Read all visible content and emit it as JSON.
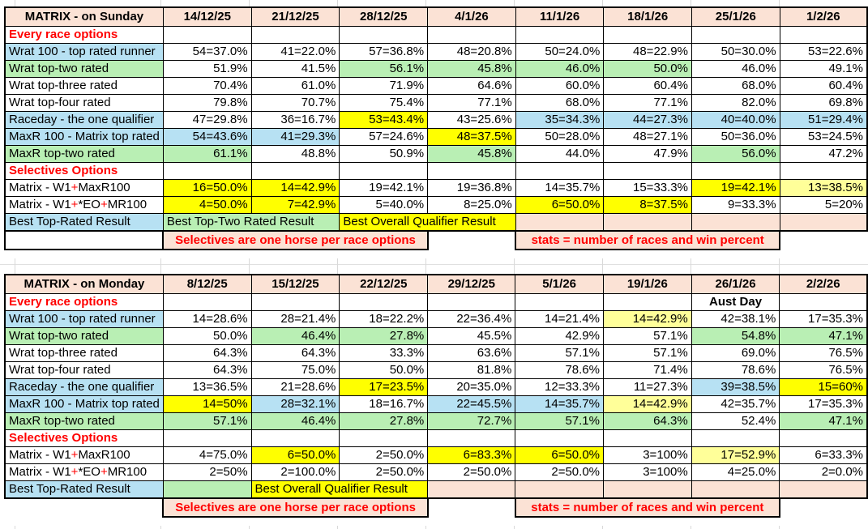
{
  "colors": {
    "peach": "#fbe2d5",
    "blue": "#b7e1f3",
    "green": "#b9efb4",
    "yellow": "#ffff00",
    "paley": "#ffff99",
    "red_text": "#ff0000",
    "grid_faint": "#d9d9d9"
  },
  "glyphs": {
    "plus": "+"
  },
  "tables": [
    {
      "title": "MATRIX - on Sunday",
      "dates": [
        "14/12/25",
        "21/12/25",
        "28/12/25",
        "4/1/26",
        "11/1/26",
        "18/1/26",
        "25/1/26",
        "1/2/26"
      ],
      "rows": [
        {
          "label": "Every race options",
          "section": true,
          "cells": [
            {
              "t": ""
            },
            {
              "t": ""
            },
            {
              "t": ""
            },
            {
              "t": ""
            },
            {
              "t": ""
            },
            {
              "t": ""
            },
            {
              "t": ""
            },
            {
              "t": ""
            }
          ]
        },
        {
          "label": "Wrat 100 - top rated runner",
          "lbg": "blue",
          "cells": [
            {
              "t": "54=37.0%"
            },
            {
              "t": "41=22.0%"
            },
            {
              "t": "57=36.8%"
            },
            {
              "t": "48=20.8%"
            },
            {
              "t": "50=24.0%"
            },
            {
              "t": "48=22.9%"
            },
            {
              "t": "50=30.0%"
            },
            {
              "t": "53=22.6%"
            }
          ]
        },
        {
          "label": "Wrat top-two rated",
          "lbg": "green",
          "cells": [
            {
              "t": "51.9%"
            },
            {
              "t": "41.5%"
            },
            {
              "t": "56.1%",
              "bg": "green"
            },
            {
              "t": "45.8%",
              "bg": "green"
            },
            {
              "t": "46.0%",
              "bg": "green"
            },
            {
              "t": "50.0%",
              "bg": "green"
            },
            {
              "t": "46.0%"
            },
            {
              "t": "49.1%"
            }
          ]
        },
        {
          "label": "Wrat top-three rated",
          "cells": [
            {
              "t": "70.4%"
            },
            {
              "t": "61.0%"
            },
            {
              "t": "71.9%"
            },
            {
              "t": "64.6%"
            },
            {
              "t": "60.0%"
            },
            {
              "t": "60.4%"
            },
            {
              "t": "68.0%"
            },
            {
              "t": "60.4%"
            }
          ]
        },
        {
          "label": "Wrat top-four rated",
          "cells": [
            {
              "t": "79.8%"
            },
            {
              "t": "70.7%"
            },
            {
              "t": "75.4%"
            },
            {
              "t": "77.1%"
            },
            {
              "t": "68.0%"
            },
            {
              "t": "77.1%"
            },
            {
              "t": "82.0%"
            },
            {
              "t": "69.8%"
            }
          ]
        },
        {
          "label": "Raceday - the one qualifier",
          "lbg": "blue",
          "cells": [
            {
              "t": "47=29.8%"
            },
            {
              "t": "36=16.7%"
            },
            {
              "t": "53=43.4%",
              "bg": "yellow"
            },
            {
              "t": "43=25.6%"
            },
            {
              "t": "35=34.3%",
              "bg": "blue"
            },
            {
              "t": "44=27.3%",
              "bg": "blue"
            },
            {
              "t": "40=40.0%",
              "bg": "blue"
            },
            {
              "t": "51=29.4%",
              "bg": "blue"
            }
          ]
        },
        {
          "label": "MaxR 100 - Matrix top rated",
          "lbg": "blue",
          "cells": [
            {
              "t": "54=43.6%",
              "bg": "blue"
            },
            {
              "t": "41=29.3%",
              "bg": "blue"
            },
            {
              "t": "57=24.6%"
            },
            {
              "t": "48=37.5%",
              "bg": "yellow"
            },
            {
              "t": "50=28.0%"
            },
            {
              "t": "48=27.1%"
            },
            {
              "t": "50=36.0%"
            },
            {
              "t": "53=24.5%"
            }
          ]
        },
        {
          "label": "MaxR top-two rated",
          "lbg": "green",
          "cells": [
            {
              "t": "61.1%",
              "bg": "green"
            },
            {
              "t": "48.8%"
            },
            {
              "t": "50.9%"
            },
            {
              "t": "45.8%",
              "bg": "green"
            },
            {
              "t": "44.0%"
            },
            {
              "t": "47.9%"
            },
            {
              "t": "56.0%",
              "bg": "green"
            },
            {
              "t": "47.2%"
            }
          ]
        },
        {
          "label": "Selectives Options",
          "section": true,
          "cells": [
            {
              "t": ""
            },
            {
              "t": ""
            },
            {
              "t": ""
            },
            {
              "t": ""
            },
            {
              "t": ""
            },
            {
              "t": ""
            },
            {
              "t": ""
            },
            {
              "t": ""
            }
          ]
        },
        {
          "parts": [
            "Matrix - W1",
            "MaxR100"
          ],
          "cells": [
            {
              "t": "16=50.0%",
              "bg": "yellow"
            },
            {
              "t": "14=42.9%",
              "bg": "yellow"
            },
            {
              "t": "19=42.1%"
            },
            {
              "t": "19=36.8%"
            },
            {
              "t": "14=35.7%"
            },
            {
              "t": "15=33.3%"
            },
            {
              "t": "19=42.1%",
              "bg": "yellow"
            },
            {
              "t": "13=38.5%",
              "bg": "paley"
            }
          ]
        },
        {
          "parts": [
            "Matrix - W1",
            "*EO",
            "MR100"
          ],
          "cells": [
            {
              "t": "4=50.0%",
              "bg": "yellow"
            },
            {
              "t": "7=42.9%",
              "bg": "yellow"
            },
            {
              "t": "5=40.0%"
            },
            {
              "t": "8=25.0%"
            },
            {
              "t": "6=50.0%",
              "bg": "yellow"
            },
            {
              "t": "8=37.5%",
              "bg": "yellow"
            },
            {
              "t": "9=33.3%"
            },
            {
              "t": "5=20%"
            }
          ]
        }
      ],
      "bottom": {
        "label": {
          "t": "Best Top-Rated Result",
          "bg": "blue"
        },
        "spans": [
          {
            "t": "Best Top-Two Rated Result",
            "bg": "green",
            "cs": 2
          },
          {
            "t": "Best Overall Qualifier Result",
            "bg": "yellow",
            "cs": 2
          },
          {
            "t": "",
            "bg": "peach",
            "cs": 1
          },
          {
            "t": "",
            "bg": "peach",
            "cs": 1
          },
          {
            "t": "",
            "bg": "peach",
            "cs": 1
          },
          {
            "t": "",
            "bg": "peach",
            "cs": 1
          }
        ]
      },
      "footer": {
        "label_boxed": true,
        "selectives_note": "Selectives are one horse per race options",
        "stats_note": "stats = number of races and win percent"
      }
    },
    {
      "title": "MATRIX - on Monday",
      "dates": [
        "8/12/25",
        "15/12/25",
        "22/12/25",
        "29/12/25",
        "5/1/26",
        "19/1/26",
        "26/1/26",
        "2/2/26"
      ],
      "rows": [
        {
          "label": "Every race options",
          "section": true,
          "cells": [
            {
              "t": ""
            },
            {
              "t": ""
            },
            {
              "t": ""
            },
            {
              "t": ""
            },
            {
              "t": ""
            },
            {
              "t": ""
            },
            {
              "t": "Aust Day",
              "b": true,
              "al": "ctr"
            },
            {
              "t": ""
            }
          ]
        },
        {
          "label": "Wrat 100 - top rated runner",
          "lbg": "blue",
          "cells": [
            {
              "t": "14=28.6%"
            },
            {
              "t": "28=21.4%"
            },
            {
              "t": "18=22.2%"
            },
            {
              "t": "22=36.4%"
            },
            {
              "t": "14=21.4%"
            },
            {
              "t": "14=42.9%",
              "bg": "paley"
            },
            {
              "t": "42=38.1%"
            },
            {
              "t": "17=35.3%"
            }
          ]
        },
        {
          "label": "Wrat top-two rated",
          "lbg": "green",
          "cells": [
            {
              "t": "50.0%"
            },
            {
              "t": "46.4%",
              "bg": "green"
            },
            {
              "t": "27.8%",
              "bg": "green"
            },
            {
              "t": "45.5%"
            },
            {
              "t": "42.9%"
            },
            {
              "t": "57.1%"
            },
            {
              "t": "54.8%",
              "bg": "green"
            },
            {
              "t": "47.1%",
              "bg": "green"
            }
          ]
        },
        {
          "label": "Wrat top-three rated",
          "cells": [
            {
              "t": "64.3%"
            },
            {
              "t": "64.3%"
            },
            {
              "t": "33.3%"
            },
            {
              "t": "63.6%"
            },
            {
              "t": "57.1%"
            },
            {
              "t": "57.1%"
            },
            {
              "t": "69.0%"
            },
            {
              "t": "76.5%"
            }
          ]
        },
        {
          "label": "Wrat top-four rated",
          "cells": [
            {
              "t": "64.3%"
            },
            {
              "t": "75.0%"
            },
            {
              "t": "50.0%"
            },
            {
              "t": "81.8%"
            },
            {
              "t": "78.6%"
            },
            {
              "t": "71.4%"
            },
            {
              "t": "78.6%"
            },
            {
              "t": "76.5%"
            }
          ]
        },
        {
          "label": "Raceday - the one qualifier",
          "lbg": "blue",
          "cells": [
            {
              "t": "13=36.5%"
            },
            {
              "t": "21=28.6%"
            },
            {
              "t": "17=23.5%",
              "bg": "yellow"
            },
            {
              "t": "20=35.0%"
            },
            {
              "t": "12=33.3%"
            },
            {
              "t": "11=27.3%"
            },
            {
              "t": "39=38.5%",
              "bg": "blue"
            },
            {
              "t": "15=60%",
              "bg": "yellow"
            }
          ]
        },
        {
          "label": "MaxR 100 - Matrix top rated",
          "lbg": "blue",
          "cells": [
            {
              "t": "14=50%",
              "bg": "yellow"
            },
            {
              "t": "28=32.1%",
              "bg": "blue"
            },
            {
              "t": "18=16.7%"
            },
            {
              "t": "22=45.5%",
              "bg": "blue"
            },
            {
              "t": "14=35.7%",
              "bg": "blue"
            },
            {
              "t": "14=42.9%",
              "bg": "paley"
            },
            {
              "t": "42=35.7%"
            },
            {
              "t": "17=35.3%"
            }
          ]
        },
        {
          "label": "MaxR top-two rated",
          "lbg": "green",
          "cells": [
            {
              "t": "57.1%",
              "bg": "green"
            },
            {
              "t": "46.4%",
              "bg": "green"
            },
            {
              "t": "27.8%",
              "bg": "green"
            },
            {
              "t": "72.7%",
              "bg": "green"
            },
            {
              "t": "57.1%",
              "bg": "green"
            },
            {
              "t": "64.3%",
              "bg": "green"
            },
            {
              "t": "52.4%"
            },
            {
              "t": "47.1%",
              "bg": "green"
            }
          ]
        },
        {
          "label": "Selectives Options",
          "section": true,
          "cells": [
            {
              "t": ""
            },
            {
              "t": ""
            },
            {
              "t": ""
            },
            {
              "t": ""
            },
            {
              "t": ""
            },
            {
              "t": ""
            },
            {
              "t": ""
            },
            {
              "t": ""
            }
          ]
        },
        {
          "parts": [
            "Matrix - W1",
            "MaxR100"
          ],
          "cells": [
            {
              "t": "4=75.0%"
            },
            {
              "t": "6=50.0%",
              "bg": "yellow"
            },
            {
              "t": "2=50.0%"
            },
            {
              "t": "6=83.3%",
              "bg": "yellow"
            },
            {
              "t": "6=50.0%",
              "bg": "yellow"
            },
            {
              "t": "3=100%"
            },
            {
              "t": "17=52.9%",
              "bg": "paley"
            },
            {
              "t": "6=33.3%"
            }
          ]
        },
        {
          "parts": [
            "Matrix - W1",
            "*EO",
            "MR100"
          ],
          "cells": [
            {
              "t": "2=50%"
            },
            {
              "t": "2=100.0%"
            },
            {
              "t": "2=50.0%"
            },
            {
              "t": "2=50.0%"
            },
            {
              "t": "2=50.0%"
            },
            {
              "t": "3=100%"
            },
            {
              "t": "4=25.0%"
            },
            {
              "t": "2=0.0%"
            }
          ]
        }
      ],
      "bottom": {
        "label": {
          "t": "Best Top-Rated Result",
          "bg": "blue"
        },
        "spans": [
          {
            "t": "",
            "bg": "green",
            "cs": 1
          },
          {
            "t": "Best Overall Qualifier Result",
            "bg": "yellow",
            "cs": 2
          },
          {
            "t": "",
            "bg": "peach",
            "cs": 1
          },
          {
            "t": "",
            "bg": "peach",
            "cs": 1
          },
          {
            "t": "",
            "bg": "peach",
            "cs": 1
          },
          {
            "t": "",
            "bg": "peach",
            "cs": 1
          },
          {
            "t": "",
            "bg": "peach",
            "cs": 1
          }
        ]
      },
      "footer": {
        "label_boxed": false,
        "selectives_note": "Selectives are one horse per race options",
        "stats_note": "stats = number of races and win percent"
      }
    }
  ]
}
